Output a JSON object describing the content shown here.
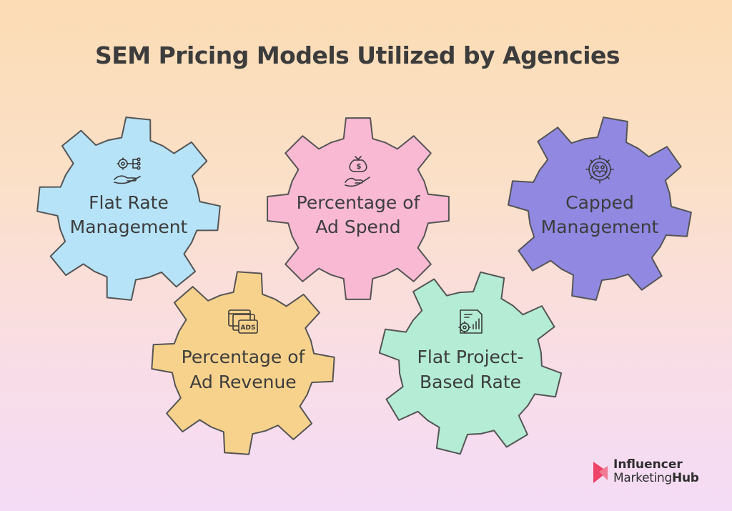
{
  "title": "SEM Pricing Models Utilized by Agencies",
  "gears": [
    {
      "label_line1": "Flat Rate",
      "label_line2": "Management",
      "color": "#b6e3f7",
      "icon": "gear-hand-network-icon"
    },
    {
      "label_line1": "Percentage of",
      "label_line2": "Ad Spend",
      "color": "#f9b9d3",
      "icon": "money-bag-hand-icon"
    },
    {
      "label_line1": "Capped",
      "label_line2": "Management",
      "color": "#9188e2",
      "icon": "team-gear-icon"
    },
    {
      "label_line1": "Percentage of",
      "label_line2": "Ad Revenue",
      "color": "#f7d28c",
      "icon": "ads-windows-icon",
      "icon_text": "ADS"
    },
    {
      "label_line1": "Flat Project-",
      "label_line2": "Based Rate",
      "color": "#b4ecd5",
      "icon": "document-gear-chart-icon"
    }
  ],
  "logo": {
    "line1": "Influencer",
    "line2_a": "Marketing",
    "line2_b": "Hub",
    "color": "#ee4266"
  }
}
